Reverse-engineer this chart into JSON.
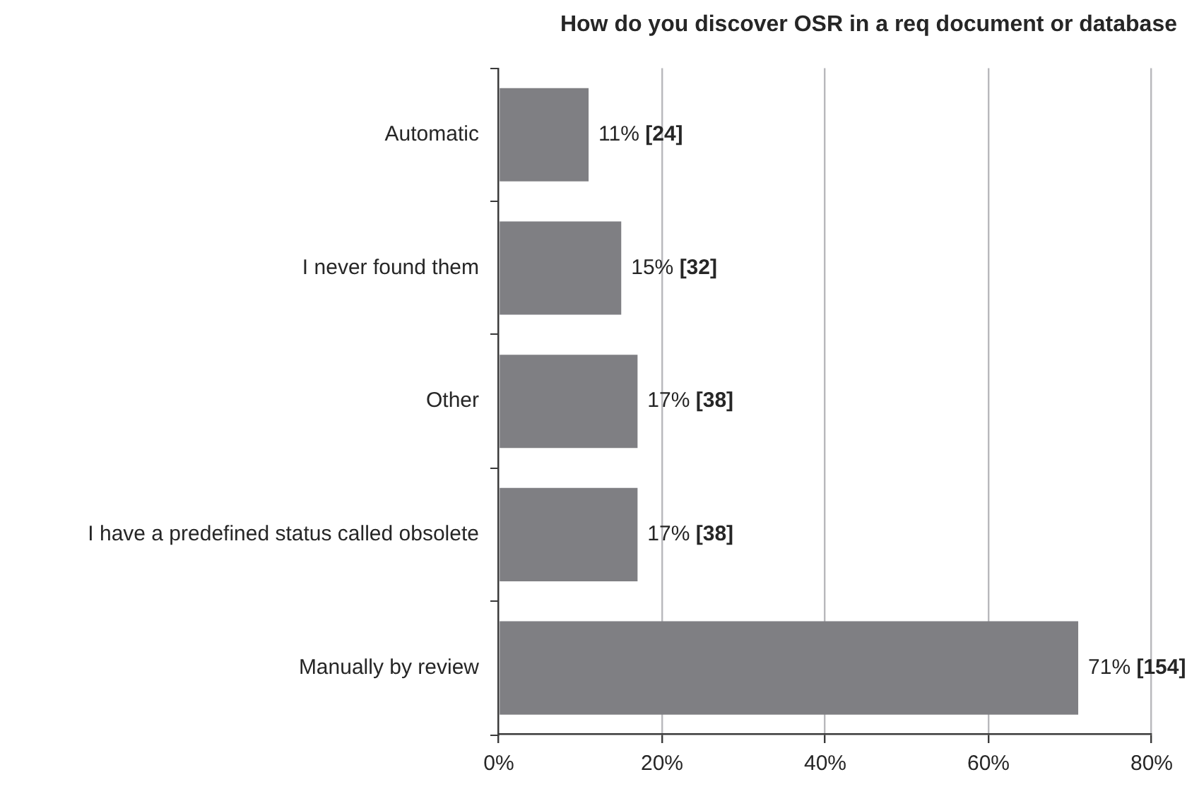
{
  "chart_data": {
    "type": "bar",
    "orientation": "horizontal",
    "title": "How do you discover OSR in a req document or database",
    "categories": [
      "Automatic",
      "I never found them",
      "Other",
      "I have a predefined status called obsolete",
      "Manually by review"
    ],
    "values": [
      11,
      15,
      17,
      17,
      71
    ],
    "color": "#7f7f83",
    "value_labels": [
      "11% [24]",
      "15% [32]",
      "17% [38]",
      "17% [38]",
      "71% [154]"
    ],
    "xlim": [
      0,
      80
    ],
    "xticks": [
      {
        "value": 0,
        "label": "0%"
      },
      {
        "value": 20,
        "label": "20%"
      },
      {
        "value": 40,
        "label": "40%"
      },
      {
        "value": 60,
        "label": "60%"
      },
      {
        "value": 80,
        "label": "80%"
      }
    ],
    "grid": "x"
  }
}
